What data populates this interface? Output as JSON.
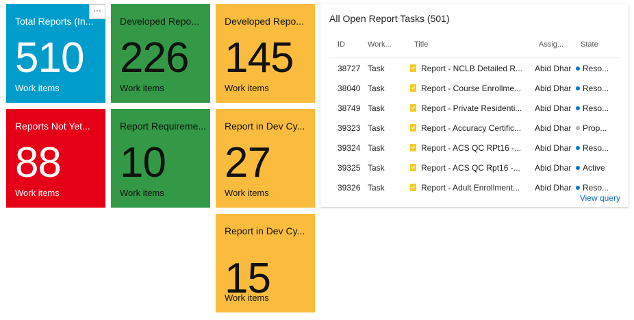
{
  "tiles": [
    {
      "title": "Total Reports (In...",
      "count": "510",
      "sub": "Work items",
      "color": "#009ccc"
    },
    {
      "title": "Developed Repo...",
      "count": "226",
      "sub": "Work items",
      "color": "#339947"
    },
    {
      "title": "Developed Repo...",
      "count": "145",
      "sub": "Work items",
      "color": "#fbbc3d"
    },
    {
      "title": "Reports Not Yet...",
      "count": "88",
      "sub": "Work items",
      "color": "#e60017"
    },
    {
      "title": "Report Requireme...",
      "count": "10",
      "sub": "Work items",
      "color": "#339947"
    },
    {
      "title": "Report in Dev Cy...",
      "count": "27",
      "sub": "Work items",
      "color": "#fbbc3d"
    },
    {
      "title": "Report in Dev Cy...",
      "count": "15",
      "sub": "Work items",
      "color": "#fbbc3d"
    }
  ],
  "more_button": {
    "label": "···"
  },
  "query_panel": {
    "title": "All Open Report Tasks (501)",
    "columns": [
      "ID",
      "Work...",
      "Title",
      "Assig...",
      "State"
    ],
    "rows": [
      {
        "id": "38727",
        "type": "Task",
        "title": "Report - NCLB Detailed R...",
        "assigned": "Abid Dhar",
        "state": "Reso...",
        "state_color": "#007acc"
      },
      {
        "id": "38040",
        "type": "Task",
        "title": "Report - Course Enrollme...",
        "assigned": "Abid Dhar",
        "state": "Reso...",
        "state_color": "#007acc"
      },
      {
        "id": "38749",
        "type": "Task",
        "title": "Report - Private Residenti...",
        "assigned": "Abid Dhar",
        "state": "Reso...",
        "state_color": "#007acc"
      },
      {
        "id": "39323",
        "type": "Task",
        "title": "Report - Accuracy Certific...",
        "assigned": "Abid Dhar",
        "state": "Prop...",
        "state_color": "#b2b2b2"
      },
      {
        "id": "39324",
        "type": "Task",
        "title": "Report - ACS QC RPt16 -...",
        "assigned": "Abid Dhar",
        "state": "Reso...",
        "state_color": "#007acc"
      },
      {
        "id": "39325",
        "type": "Task",
        "title": "Report - ACS QC Rpt16 -...",
        "assigned": "Abid Dhar",
        "state": "Active",
        "state_color": "#007acc"
      },
      {
        "id": "39326",
        "type": "Task",
        "title": "Report - Adult Enrollment...",
        "assigned": "Abid Dhar",
        "state": "Reso...",
        "state_color": "#007acc"
      }
    ],
    "view_query_label": "View query"
  }
}
